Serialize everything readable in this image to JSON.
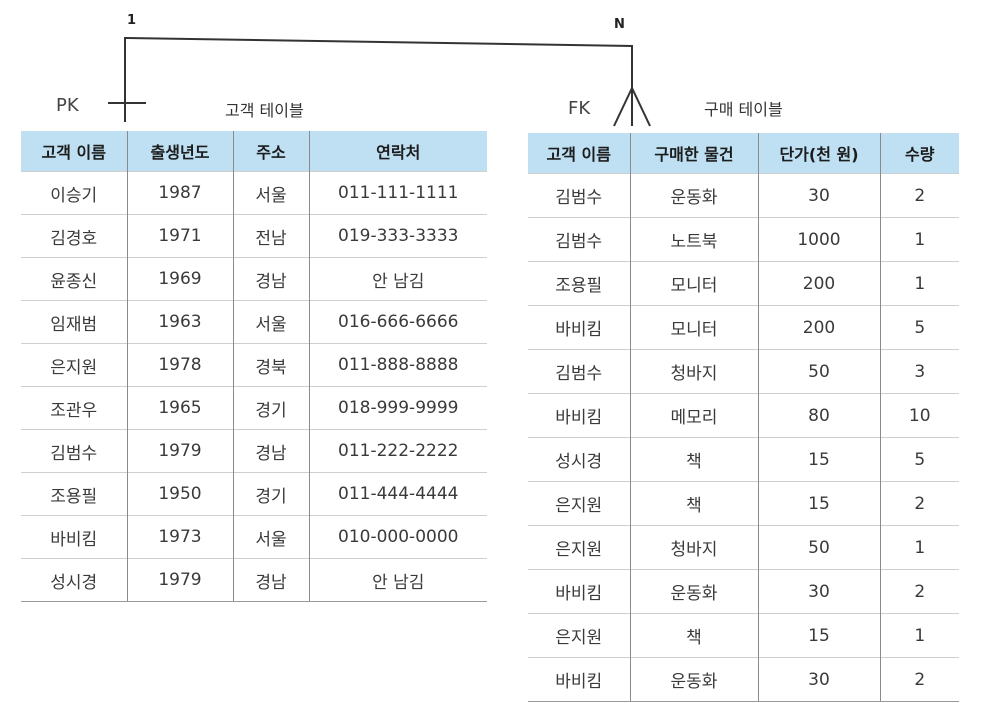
{
  "relationship": {
    "one_cardinality": "1",
    "many_cardinality": "N",
    "primary_key_label": "PK",
    "foreign_key_label": "FK"
  },
  "customer_table": {
    "caption": "고객 테이블",
    "headers": [
      "고객 이름",
      "출생년도",
      "주소",
      "연락처"
    ],
    "rows": [
      [
        "이승기",
        "1987",
        "서울",
        "011-111-1111"
      ],
      [
        "김경호",
        "1971",
        "전남",
        "019-333-3333"
      ],
      [
        "윤종신",
        "1969",
        "경남",
        "안 남김"
      ],
      [
        "임재범",
        "1963",
        "서울",
        "016-666-6666"
      ],
      [
        "은지원",
        "1978",
        "경북",
        "011-888-8888"
      ],
      [
        "조관우",
        "1965",
        "경기",
        "018-999-9999"
      ],
      [
        "김범수",
        "1979",
        "경남",
        "011-222-2222"
      ],
      [
        "조용필",
        "1950",
        "경기",
        "011-444-4444"
      ],
      [
        "바비킴",
        "1973",
        "서울",
        "010-000-0000"
      ],
      [
        "성시경",
        "1979",
        "경남",
        "안 남김"
      ]
    ]
  },
  "purchase_table": {
    "caption": "구매 테이블",
    "headers": [
      "고객 이름",
      "구매한 물건",
      "단가(천 원)",
      "수량"
    ],
    "rows": [
      [
        "김범수",
        "운동화",
        "30",
        "2"
      ],
      [
        "김범수",
        "노트북",
        "1000",
        "1"
      ],
      [
        "조용필",
        "모니터",
        "200",
        "1"
      ],
      [
        "바비킴",
        "모니터",
        "200",
        "5"
      ],
      [
        "김범수",
        "청바지",
        "50",
        "3"
      ],
      [
        "바비킴",
        "메모리",
        "80",
        "10"
      ],
      [
        "성시경",
        "책",
        "15",
        "5"
      ],
      [
        "은지원",
        "책",
        "15",
        "2"
      ],
      [
        "은지원",
        "청바지",
        "50",
        "1"
      ],
      [
        "바비킴",
        "운동화",
        "30",
        "2"
      ],
      [
        "은지원",
        "책",
        "15",
        "1"
      ],
      [
        "바비킴",
        "운동화",
        "30",
        "2"
      ]
    ]
  }
}
